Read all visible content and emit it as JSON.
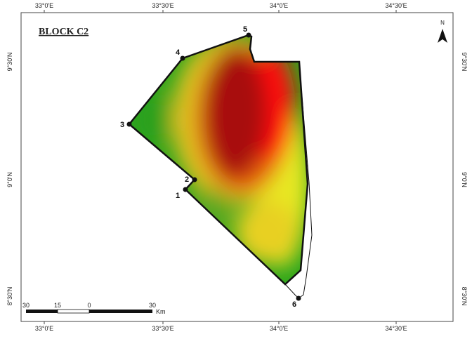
{
  "title": "BLOCK C2",
  "longitude_labels": [
    "33°0'E",
    "33°30'E",
    "34°0'E",
    "34°30'E"
  ],
  "latitude_labels": [
    "9°30'N",
    "9°0'N",
    "8°30'N"
  ],
  "points": [
    {
      "label": "1"
    },
    {
      "label": "2"
    },
    {
      "label": "3"
    },
    {
      "label": "4"
    },
    {
      "label": "5"
    },
    {
      "label": "6"
    }
  ],
  "north": "N",
  "scale_bar": {
    "labels": [
      "30",
      "15",
      "0",
      "30"
    ],
    "unit": "Km"
  }
}
